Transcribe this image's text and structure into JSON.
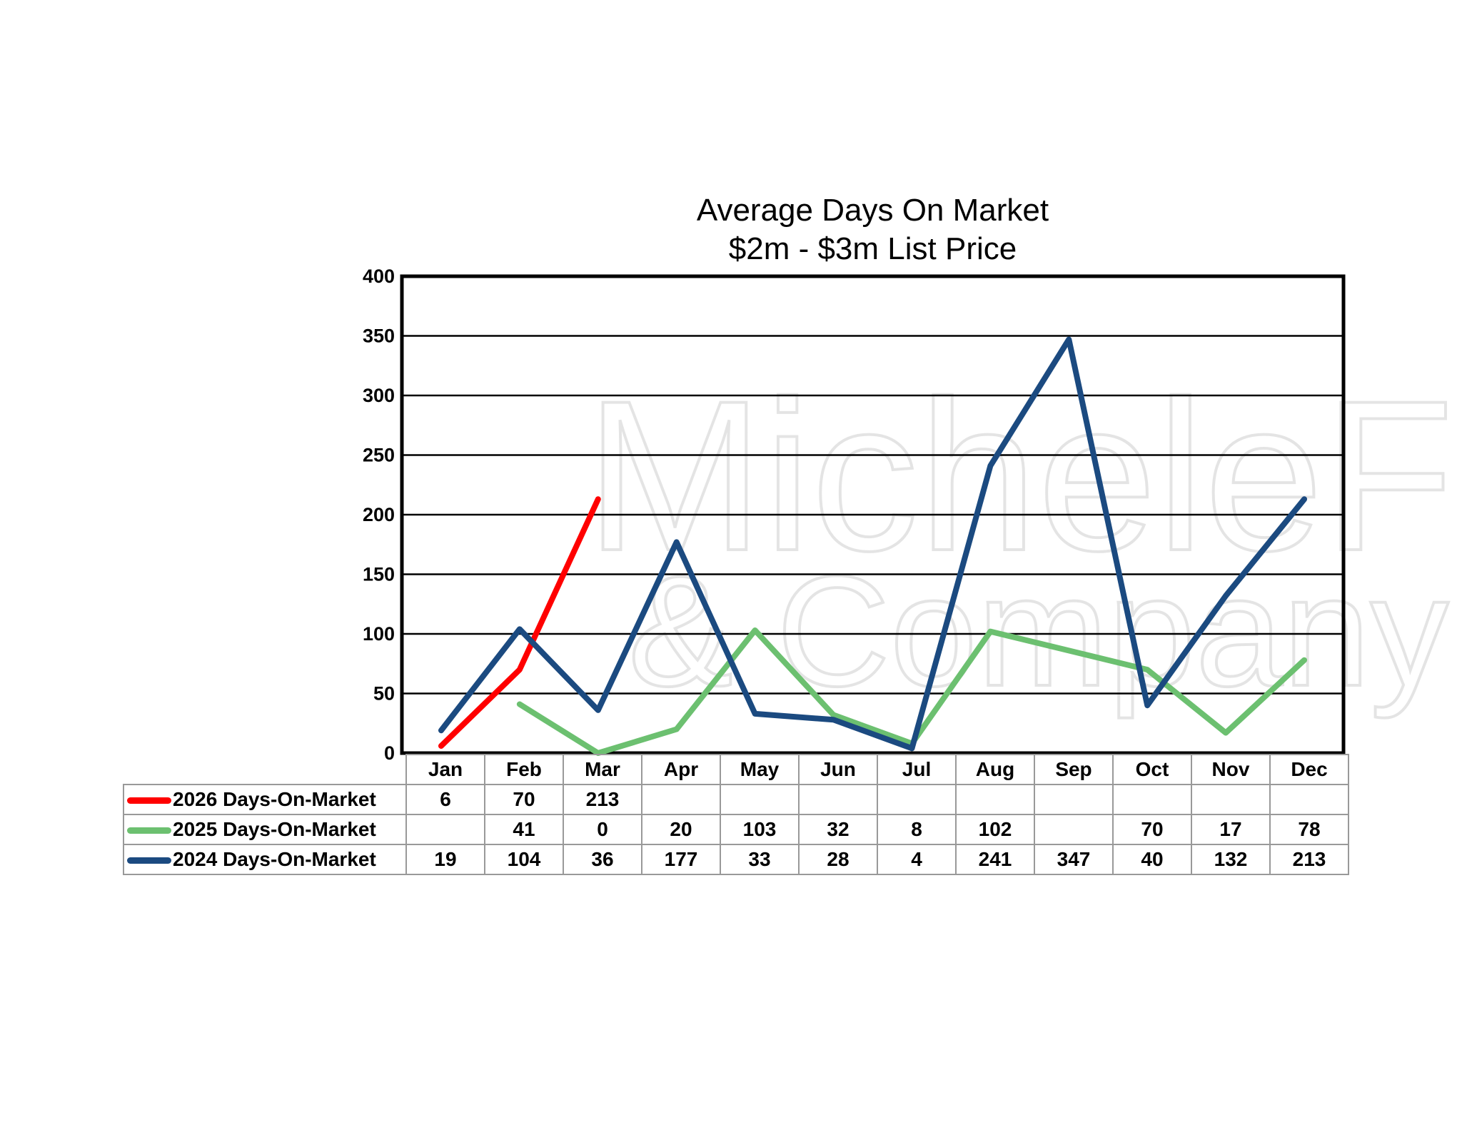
{
  "chart_data": {
    "type": "line",
    "title": "Average Days On Market",
    "subtitle": "$2m - $3m List Price",
    "categories": [
      "Jan",
      "Feb",
      "Mar",
      "Apr",
      "May",
      "Jun",
      "Jul",
      "Aug",
      "Sep",
      "Oct",
      "Nov",
      "Dec"
    ],
    "ylim": [
      0,
      400
    ],
    "yticks": [
      "0",
      "50",
      "100",
      "150",
      "200",
      "250",
      "300",
      "350",
      "400"
    ],
    "grid": true,
    "legend": "bottom-table",
    "series": [
      {
        "name": "2026 Days-On-Market",
        "color": "#ff0000",
        "values": [
          6,
          70,
          213,
          null,
          null,
          null,
          null,
          null,
          null,
          null,
          null,
          null
        ]
      },
      {
        "name": "2025 Days-On-Market",
        "color": "#6cc070",
        "values": [
          null,
          41,
          0,
          20,
          103,
          32,
          8,
          102,
          null,
          70,
          17,
          78
        ]
      },
      {
        "name": "2024 Days-On-Market",
        "color": "#1b4a80",
        "values": [
          19,
          104,
          36,
          177,
          33,
          28,
          4,
          241,
          347,
          40,
          132,
          213
        ]
      }
    ]
  },
  "watermark": {
    "line1": "MicheleFlory",
    "line2": "& Company"
  }
}
